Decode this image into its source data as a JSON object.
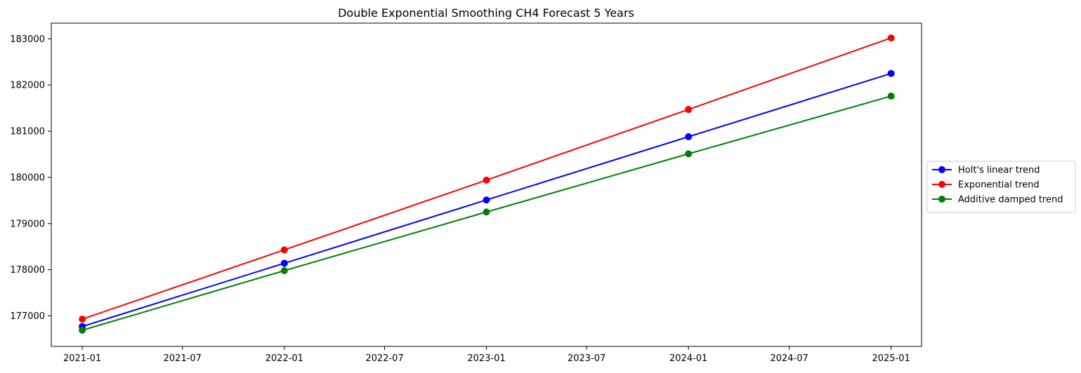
{
  "chart_data": {
    "type": "line",
    "title": "Double Exponential Smoothing CH4 Forecast 5 Years",
    "xlabel": "",
    "ylabel": "",
    "x": [
      "2021-01-01",
      "2022-01-01",
      "2023-01-01",
      "2024-01-01",
      "2025-01-01"
    ],
    "x_ticks": [
      "2021-01",
      "2021-07",
      "2022-01",
      "2022-07",
      "2023-01",
      "2023-07",
      "2024-01",
      "2024-07",
      "2025-01"
    ],
    "x_tick_dates": [
      "2021-01-01",
      "2021-07-01",
      "2022-01-01",
      "2022-07-01",
      "2023-01-01",
      "2023-07-01",
      "2024-01-01",
      "2024-07-01",
      "2025-01-01"
    ],
    "xlim": [
      "2020-11-06",
      "2025-02-25"
    ],
    "y_ticks": [
      177000,
      178000,
      179000,
      180000,
      181000,
      182000,
      183000
    ],
    "y_tick_labels": [
      "177000",
      "178000",
      "179000",
      "180000",
      "181000",
      "182000",
      "183000"
    ],
    "ylim": [
      176340,
      183340
    ],
    "grid": false,
    "legend_position": "center-right-outside",
    "series": [
      {
        "name": "Holt's linear trend",
        "color": "#0000ff",
        "marker": "circle",
        "values": [
          176770,
          178140,
          179510,
          180880,
          182250
        ]
      },
      {
        "name": "Exponential trend",
        "color": "#ff0000",
        "marker": "circle",
        "values": [
          176930,
          178430,
          179940,
          181470,
          183020
        ]
      },
      {
        "name": "Additive damped trend",
        "color": "#008000",
        "marker": "circle",
        "values": [
          176690,
          177980,
          179250,
          180510,
          181760
        ]
      }
    ]
  }
}
